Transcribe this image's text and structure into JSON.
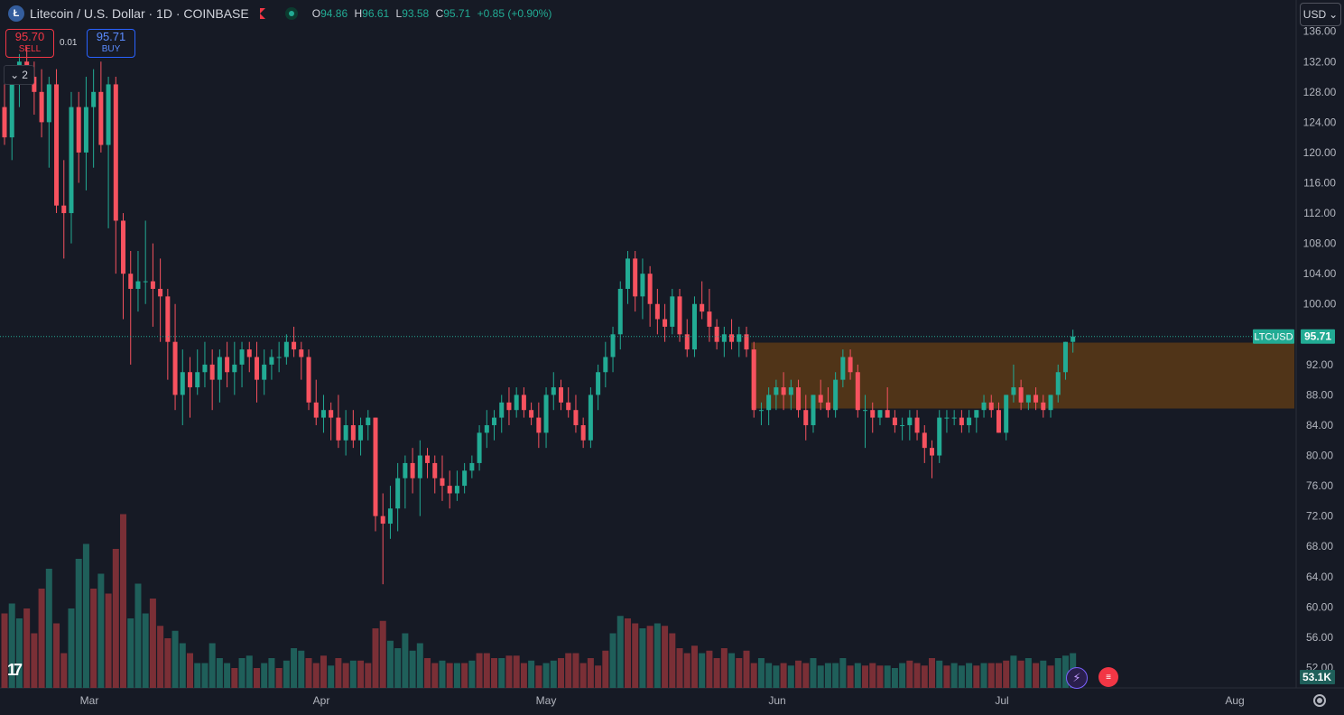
{
  "header": {
    "logo_letter": "Ł",
    "symbol_title": "Litecoin / U.S. Dollar · 1D · COINBASE",
    "open_label": "O",
    "open": "94.86",
    "high_label": "H",
    "high": "96.61",
    "low_label": "L",
    "low": "93.58",
    "close_label": "C",
    "close": "95.71",
    "change": "+0.85 (+0.90%)"
  },
  "trade": {
    "sell_price": "95.70",
    "sell_label": "SELL",
    "spread": "0.01",
    "buy_price": "95.71",
    "buy_label": "BUY"
  },
  "indicators_toggle": {
    "icon": "chevron-down-icon",
    "count": "2"
  },
  "currency_selector": {
    "value": "USD"
  },
  "colors": {
    "background": "#161a25",
    "up": "#22ab94",
    "down": "#f7525f",
    "volume_up": "#1f5f5a",
    "volume_down": "#7a2f36",
    "zone": "#5a3a16",
    "grid_text": "#b2b5be",
    "price_label_bg": "#22ab94"
  },
  "chart_data": {
    "type": "candlestick",
    "symbol": "LTCUSD",
    "interval": "1D",
    "y_axis_ticks": [
      "136.00",
      "132.00",
      "128.00",
      "124.00",
      "120.00",
      "116.00",
      "112.00",
      "108.00",
      "104.00",
      "100.00",
      "92.00",
      "88.00",
      "84.00",
      "80.00",
      "76.00",
      "72.00",
      "68.00",
      "64.00",
      "60.00",
      "56.00",
      "52.00"
    ],
    "x_axis_ticks": [
      "Mar",
      "Apr",
      "May",
      "Jun",
      "Jul",
      "Aug"
    ],
    "last_price": 95.71,
    "last_price_label": "LTCUSD",
    "last_price_text": "95.71",
    "volume_last_text": "53.1K",
    "zone": {
      "y_top": 94.9,
      "y_bottom": 86.2,
      "start_index": 101,
      "end_index": 181
    },
    "candles": [
      [
        126,
        129,
        121,
        122
      ],
      [
        122,
        131,
        119,
        129
      ],
      [
        129,
        133,
        126,
        132
      ],
      [
        132,
        134,
        129,
        130
      ],
      [
        130,
        132,
        125,
        128
      ],
      [
        128,
        131,
        122,
        124
      ],
      [
        124,
        130,
        118,
        129
      ],
      [
        129,
        131,
        112,
        113
      ],
      [
        113,
        119,
        106,
        112
      ],
      [
        112,
        128,
        108,
        126
      ],
      [
        126,
        128,
        116,
        120
      ],
      [
        120,
        130,
        115,
        126
      ],
      [
        126,
        131,
        118,
        128
      ],
      [
        128,
        132,
        120,
        121
      ],
      [
        121,
        130,
        110,
        129
      ],
      [
        129,
        130,
        104,
        111
      ],
      [
        111,
        112,
        98,
        104
      ],
      [
        104,
        107,
        92,
        102
      ],
      [
        102,
        107,
        99,
        103
      ],
      [
        103,
        111,
        100,
        103
      ],
      [
        103,
        108,
        97,
        102
      ],
      [
        102,
        106,
        95,
        101
      ],
      [
        101,
        102,
        90,
        95
      ],
      [
        95,
        100,
        86,
        88
      ],
      [
        88,
        94,
        84,
        91
      ],
      [
        91,
        93,
        85,
        89
      ],
      [
        89,
        94,
        88,
        91
      ],
      [
        91,
        95,
        89,
        92
      ],
      [
        92,
        94,
        86,
        90
      ],
      [
        90,
        94,
        87,
        93
      ],
      [
        93,
        95,
        89,
        91
      ],
      [
        91,
        95,
        88,
        92
      ],
      [
        92,
        95,
        89,
        94
      ],
      [
        94,
        95,
        91,
        93
      ],
      [
        93,
        95,
        87,
        90
      ],
      [
        90,
        94,
        88,
        92
      ],
      [
        92,
        94,
        90,
        93
      ],
      [
        93,
        95,
        91,
        93
      ],
      [
        93,
        96,
        92,
        95
      ],
      [
        95,
        97,
        93,
        94
      ],
      [
        94,
        95,
        90,
        93
      ],
      [
        93,
        94,
        86,
        87
      ],
      [
        87,
        90,
        84,
        85
      ],
      [
        85,
        88,
        83,
        86
      ],
      [
        86,
        87,
        82,
        85
      ],
      [
        85,
        88,
        81,
        82
      ],
      [
        82,
        86,
        80,
        84
      ],
      [
        84,
        86,
        81,
        82
      ],
      [
        82,
        85,
        80,
        84
      ],
      [
        84,
        86,
        82,
        85
      ],
      [
        85,
        85,
        70,
        72
      ],
      [
        72,
        75,
        63,
        71
      ],
      [
        71,
        76,
        69,
        73
      ],
      [
        73,
        79,
        70,
        77
      ],
      [
        77,
        80,
        73,
        79
      ],
      [
        79,
        81,
        75,
        77
      ],
      [
        77,
        82,
        72,
        80
      ],
      [
        80,
        81,
        77,
        79
      ],
      [
        79,
        80,
        75,
        77
      ],
      [
        77,
        80,
        74,
        76
      ],
      [
        76,
        78,
        73,
        75
      ],
      [
        75,
        78,
        74,
        76
      ],
      [
        76,
        79,
        75,
        78
      ],
      [
        78,
        80,
        77,
        79
      ],
      [
        79,
        84,
        78,
        83
      ],
      [
        83,
        86,
        81,
        84
      ],
      [
        84,
        86,
        82,
        85
      ],
      [
        85,
        88,
        83,
        87
      ],
      [
        87,
        89,
        84,
        86
      ],
      [
        86,
        89,
        85,
        88
      ],
      [
        88,
        89,
        85,
        86
      ],
      [
        86,
        87,
        84,
        85
      ],
      [
        85,
        87,
        81,
        83
      ],
      [
        83,
        89,
        81,
        88
      ],
      [
        88,
        91,
        86,
        89
      ],
      [
        89,
        90,
        86,
        87
      ],
      [
        87,
        89,
        85,
        86
      ],
      [
        86,
        88,
        83,
        84
      ],
      [
        84,
        85,
        81,
        82
      ],
      [
        82,
        89,
        81,
        88
      ],
      [
        88,
        92,
        86,
        91
      ],
      [
        91,
        95,
        89,
        93
      ],
      [
        93,
        97,
        91,
        96
      ],
      [
        96,
        103,
        94,
        102
      ],
      [
        102,
        107,
        100,
        106
      ],
      [
        106,
        107,
        99,
        101
      ],
      [
        101,
        106,
        98,
        104
      ],
      [
        104,
        105,
        97,
        100
      ],
      [
        100,
        102,
        96,
        98
      ],
      [
        98,
        100,
        95,
        97
      ],
      [
        97,
        102,
        96,
        101
      ],
      [
        101,
        102,
        95,
        96
      ],
      [
        96,
        98,
        93,
        94
      ],
      [
        94,
        101,
        93,
        100
      ],
      [
        100,
        103,
        98,
        99
      ],
      [
        99,
        102,
        95,
        97
      ],
      [
        97,
        98,
        94,
        95
      ],
      [
        95,
        97,
        93,
        96
      ],
      [
        96,
        98,
        94,
        95
      ],
      [
        95,
        97,
        93,
        96
      ],
      [
        96,
        97,
        93,
        94
      ],
      [
        94,
        95,
        85,
        86
      ],
      [
        86,
        87,
        84,
        86
      ],
      [
        86,
        89,
        84,
        88
      ],
      [
        88,
        90,
        86,
        89
      ],
      [
        89,
        91,
        86,
        88
      ],
      [
        88,
        90,
        86,
        89
      ],
      [
        89,
        90,
        85,
        86
      ],
      [
        86,
        88,
        82,
        84
      ],
      [
        84,
        88,
        83,
        88
      ],
      [
        88,
        90,
        86,
        87
      ],
      [
        87,
        89,
        85,
        86
      ],
      [
        86,
        91,
        85,
        90
      ],
      [
        90,
        94,
        89,
        93
      ],
      [
        93,
        94,
        90,
        91
      ],
      [
        91,
        92,
        85,
        86
      ],
      [
        86,
        88,
        81,
        86
      ],
      [
        86,
        87,
        83,
        85
      ],
      [
        85,
        86,
        84,
        86
      ],
      [
        86,
        89,
        85,
        85
      ],
      [
        85,
        86,
        83,
        84
      ],
      [
        84,
        85,
        82,
        84
      ],
      [
        84,
        86,
        82,
        85
      ],
      [
        85,
        86,
        82,
        83
      ],
      [
        83,
        84,
        79,
        81
      ],
      [
        81,
        82,
        77,
        80
      ],
      [
        80,
        86,
        79,
        85
      ],
      [
        85,
        86,
        83,
        85
      ],
      [
        85,
        86,
        84,
        85
      ],
      [
        85,
        86,
        83,
        84
      ],
      [
        84,
        86,
        83,
        85
      ],
      [
        85,
        86,
        83,
        86
      ],
      [
        86,
        88,
        85,
        87
      ],
      [
        87,
        88,
        85,
        86
      ],
      [
        86,
        87,
        83,
        83
      ],
      [
        83,
        88,
        82,
        88
      ],
      [
        88,
        92,
        87,
        89
      ],
      [
        89,
        90,
        86,
        87
      ],
      [
        87,
        88,
        86,
        88
      ],
      [
        88,
        89,
        86,
        87
      ],
      [
        87,
        88,
        85,
        86
      ],
      [
        86,
        88,
        85,
        88
      ],
      [
        88,
        92,
        87,
        91
      ],
      [
        91,
        95,
        90,
        95
      ],
      [
        95,
        96.61,
        93.58,
        95.71
      ]
    ],
    "volumes": [
      [
        30,
        1
      ],
      [
        34,
        0
      ],
      [
        28,
        0
      ],
      [
        32,
        1
      ],
      [
        22,
        1
      ],
      [
        40,
        1
      ],
      [
        48,
        0
      ],
      [
        26,
        1
      ],
      [
        14,
        1
      ],
      [
        32,
        0
      ],
      [
        52,
        0
      ],
      [
        58,
        0
      ],
      [
        40,
        1
      ],
      [
        46,
        0
      ],
      [
        38,
        1
      ],
      [
        56,
        1
      ],
      [
        70,
        1
      ],
      [
        28,
        0
      ],
      [
        42,
        0
      ],
      [
        30,
        0
      ],
      [
        36,
        1
      ],
      [
        25,
        1
      ],
      [
        20,
        1
      ],
      [
        23,
        0
      ],
      [
        18,
        0
      ],
      [
        14,
        1
      ],
      [
        10,
        0
      ],
      [
        10,
        0
      ],
      [
        18,
        0
      ],
      [
        12,
        0
      ],
      [
        10,
        0
      ],
      [
        8,
        1
      ],
      [
        12,
        0
      ],
      [
        13,
        0
      ],
      [
        8,
        1
      ],
      [
        10,
        0
      ],
      [
        12,
        0
      ],
      [
        8,
        1
      ],
      [
        11,
        0
      ],
      [
        16,
        0
      ],
      [
        15,
        0
      ],
      [
        12,
        1
      ],
      [
        10,
        1
      ],
      [
        13,
        1
      ],
      [
        9,
        0
      ],
      [
        12,
        1
      ],
      [
        10,
        1
      ],
      [
        11,
        0
      ],
      [
        11,
        1
      ],
      [
        10,
        1
      ],
      [
        24,
        1
      ],
      [
        27,
        1
      ],
      [
        19,
        0
      ],
      [
        16,
        0
      ],
      [
        22,
        0
      ],
      [
        15,
        0
      ],
      [
        18,
        0
      ],
      [
        12,
        1
      ],
      [
        10,
        1
      ],
      [
        11,
        0
      ],
      [
        10,
        1
      ],
      [
        10,
        0
      ],
      [
        10,
        1
      ],
      [
        11,
        0
      ],
      [
        14,
        1
      ],
      [
        14,
        1
      ],
      [
        12,
        1
      ],
      [
        12,
        0
      ],
      [
        13,
        1
      ],
      [
        13,
        1
      ],
      [
        10,
        1
      ],
      [
        11,
        0
      ],
      [
        9,
        1
      ],
      [
        10,
        0
      ],
      [
        11,
        0
      ],
      [
        12,
        1
      ],
      [
        14,
        1
      ],
      [
        14,
        1
      ],
      [
        10,
        1
      ],
      [
        12,
        1
      ],
      [
        9,
        1
      ],
      [
        15,
        1
      ],
      [
        22,
        0
      ],
      [
        29,
        0
      ],
      [
        28,
        1
      ],
      [
        26,
        1
      ],
      [
        24,
        0
      ],
      [
        25,
        1
      ],
      [
        26,
        0
      ],
      [
        25,
        1
      ],
      [
        22,
        1
      ],
      [
        16,
        1
      ],
      [
        14,
        1
      ],
      [
        17,
        1
      ],
      [
        14,
        0
      ],
      [
        15,
        1
      ],
      [
        12,
        1
      ],
      [
        16,
        1
      ],
      [
        14,
        0
      ],
      [
        12,
        1
      ],
      [
        15,
        1
      ],
      [
        10,
        1
      ],
      [
        12,
        0
      ],
      [
        10,
        0
      ],
      [
        9,
        0
      ],
      [
        10,
        1
      ],
      [
        9,
        0
      ],
      [
        11,
        1
      ],
      [
        10,
        1
      ],
      [
        12,
        0
      ],
      [
        9,
        0
      ],
      [
        10,
        0
      ],
      [
        10,
        0
      ],
      [
        12,
        0
      ],
      [
        9,
        1
      ],
      [
        10,
        0
      ],
      [
        9,
        1
      ],
      [
        10,
        1
      ],
      [
        9,
        1
      ],
      [
        9,
        0
      ],
      [
        8,
        0
      ],
      [
        10,
        0
      ],
      [
        11,
        1
      ],
      [
        10,
        1
      ],
      [
        9,
        1
      ],
      [
        12,
        1
      ],
      [
        11,
        0
      ],
      [
        9,
        1
      ],
      [
        10,
        0
      ],
      [
        9,
        0
      ],
      [
        10,
        0
      ],
      [
        9,
        1
      ],
      [
        10,
        0
      ],
      [
        10,
        1
      ],
      [
        10,
        1
      ],
      [
        11,
        1
      ],
      [
        13,
        0
      ],
      [
        11,
        1
      ],
      [
        12,
        0
      ],
      [
        10,
        1
      ],
      [
        11,
        0
      ],
      [
        9,
        1
      ],
      [
        12,
        0
      ],
      [
        13,
        0
      ],
      [
        14,
        0
      ]
    ]
  }
}
